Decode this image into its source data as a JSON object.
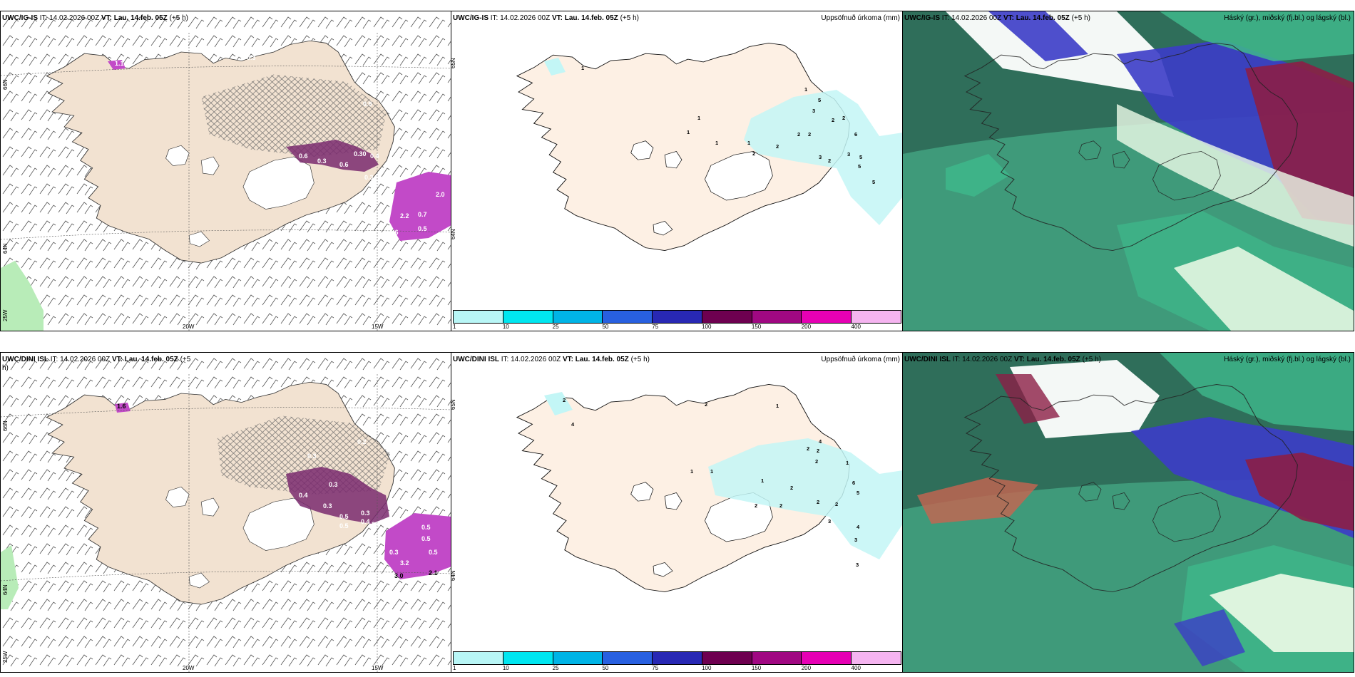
{
  "colors": {
    "land": "#f2e2d1",
    "land_precip": "#fdf0e4",
    "sea": "#ffffff",
    "precip_light": "#c3f6f6",
    "cloud_dark": "#33785f",
    "cloud_mid": "#3fb98c",
    "cloud_high_blue": "#3c3cc8",
    "cloud_high_red": "#8c1e46",
    "cloud_white": "#eefbe8"
  },
  "panels": {
    "p1": {
      "model": "UWC/IG-IS",
      "it_text": "IT: 14.02.2026 00Z",
      "vt_label": "VT:",
      "vt_value": "Lau. 14.feb. 05Z",
      "lead": "(+5 h)",
      "lat1": "66N",
      "lat2": "64N",
      "lon1": "25W",
      "lon2": "20W",
      "lon3": "15W",
      "values": [
        "1.1",
        "0.6",
        "0.3",
        "0.30",
        "0.4",
        "0.6",
        "0.9",
        "0.3",
        "0.7",
        "0.3",
        "2.2",
        "0.7",
        "0.5",
        "2.0",
        "0.6"
      ]
    },
    "p2": {
      "model": "UWC/IG-IS",
      "it_text": "IT: 14.02.2026 00Z",
      "vt_label": "VT:",
      "vt_value": "Lau. 14.feb. 05Z",
      "lead": "(+5 h)",
      "field_title": "Uppsöfnuð úrkoma (mm)",
      "lat1": "65N",
      "lat2": "64N",
      "values": [
        "1",
        "1",
        "1",
        "1",
        "1",
        "5",
        "1",
        "3",
        "2",
        "3",
        "2",
        "2",
        "2",
        "6",
        "2",
        "3",
        "2",
        "5",
        "5",
        "5",
        "2"
      ]
    },
    "p3": {
      "model": "UWC/IG-IS",
      "it_text": "IT: 14.02.2026 00Z",
      "vt_label": "VT:",
      "vt_value": "Lau. 14.feb. 05Z",
      "lead": "(+5 h)",
      "field_title": "Háský (gr.), miðský (fj.bl.) og lágský (bl.)"
    },
    "p4": {
      "model": "UWC/DINI ISL",
      "it_text": "IT: 14.02.2026 00Z",
      "vt_label": "VT:",
      "vt_value": "Lau. 14.feb. 05Z",
      "lead": "(+5",
      "lead2": "h)",
      "lat1": "66N",
      "lat2": "64N",
      "lon1": "25W",
      "lon2": "20W",
      "lon3": "15W",
      "values": [
        "1.6",
        "1.0",
        "0.3",
        "0.2",
        "0.3",
        "0.4",
        "0.3",
        "0.5",
        "0.3",
        "0.4",
        "0.5",
        "0.6",
        "0.2",
        "0.5",
        "3.2",
        "0.5",
        "0.5",
        "3.0",
        "2.1",
        "0.3"
      ]
    },
    "p5": {
      "model": "UWC/DINI ISL",
      "it_text": "IT: 14.02.2026 00Z",
      "vt_label": "VT:",
      "vt_value": "Lau. 14.feb. 05Z",
      "lead": "(+5 h)",
      "field_title": "Uppsöfnuð úrkoma (mm)",
      "lat1": "65N",
      "lat2": "64N",
      "values": [
        "2",
        "4",
        "2",
        "1",
        "1",
        "1",
        "1",
        "4",
        "2",
        "2",
        "2",
        "2",
        "1",
        "2",
        "2",
        "2",
        "2",
        "6",
        "5",
        "3",
        "4",
        "3",
        "3"
      ]
    },
    "p6": {
      "model": "UWC/DINI ISL",
      "it_text": "IT: 14.02.2026 00Z",
      "vt_label": "VT:",
      "vt_value": "Lau. 14.feb. 05Z",
      "lead": "(+5 h)",
      "field_title": "Háský (gr.), miðský (fj.bl.) og lágský (bl.)"
    }
  },
  "colorbar": {
    "labels": [
      "1",
      "10",
      "25",
      "50",
      "75",
      "100",
      "150",
      "200",
      "400"
    ],
    "colors": [
      "#b8f6f6",
      "#00e6f0",
      "#00b4e6",
      "#2860e0",
      "#2828b4",
      "#6e0050",
      "#a00882",
      "#e600b4",
      "#f5b4f0"
    ]
  }
}
